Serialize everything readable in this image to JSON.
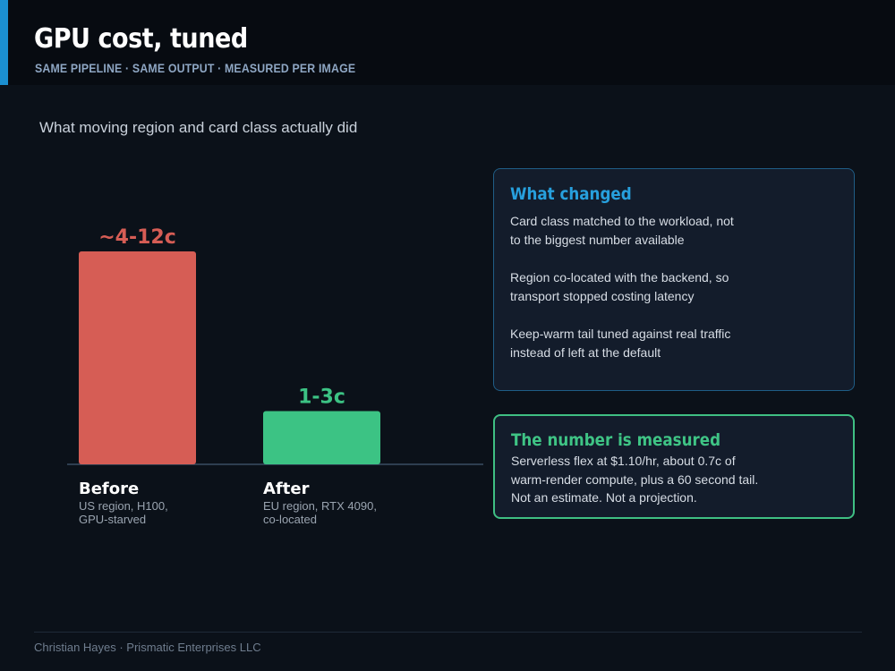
{
  "header": {
    "title": "GPU cost, tuned",
    "subtitle": "SAME PIPELINE  ·  SAME OUTPUT  ·  MEASURED PER IMAGE",
    "accent_color": "#1b8fd0"
  },
  "chart_caption": "What moving region and card class actually did",
  "chart_data": {
    "type": "bar",
    "categories": [
      "Before",
      "After"
    ],
    "descriptions": [
      [
        "US region, H100,",
        "GPU-starved"
      ],
      [
        "EU region, RTX 4090,",
        "co-located"
      ]
    ],
    "value_labels": [
      "~4-12c",
      "1-3c"
    ],
    "values": [
      12,
      3
    ],
    "colors": [
      "#d65d55",
      "#3cc384"
    ],
    "ylim": [
      0,
      12.1
    ],
    "title": "",
    "xlabel": "",
    "ylabel": ""
  },
  "cards": {
    "changed": {
      "heading": "What changed",
      "paragraphs": [
        [
          "Card class matched to the workload, not",
          "to the biggest number available"
        ],
        [
          "Region co-located with the backend, so",
          "transport stopped costing latency"
        ],
        [
          "Keep-warm tail tuned against real traffic",
          "instead of left at the default"
        ]
      ]
    },
    "measured": {
      "heading": "The number is measured",
      "lines": [
        "Serverless flex at $1.10/hr, about 0.7c of",
        "warm-render compute, plus a 60 second tail.",
        "Not an estimate. Not a projection."
      ]
    }
  },
  "footer": "Christian Hayes  ·  Prismatic Enterprises LLC"
}
